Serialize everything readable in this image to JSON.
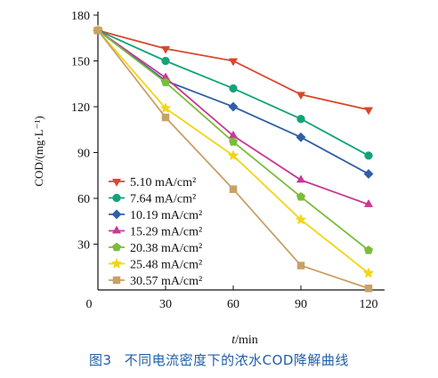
{
  "chart_data": {
    "type": "line",
    "x": [
      0,
      30,
      60,
      90,
      120
    ],
    "xticks": [
      "0",
      "30",
      "60",
      "90",
      "120"
    ],
    "yticks": [
      "30",
      "60",
      "90",
      "120",
      "150",
      "180"
    ],
    "xlim": [
      0,
      120
    ],
    "ylim": [
      0,
      180
    ],
    "xlabel_var": "t",
    "xlabel_unit": "/min",
    "ylabel": "COD/(mg·L⁻¹)",
    "legend_position": "bottom-left",
    "series": [
      {
        "name": "5.10 mA/cm²",
        "color": "#d9472b",
        "marker": "triangle-down",
        "values": [
          170,
          158,
          150,
          128,
          118
        ]
      },
      {
        "name": "7.64 mA/cm²",
        "color": "#12a37a",
        "marker": "circle",
        "values": [
          170,
          150,
          132,
          112,
          88
        ]
      },
      {
        "name": "10.19 mA/cm²",
        "color": "#2f5fa6",
        "marker": "diamond",
        "values": [
          170,
          137,
          120,
          100,
          76
        ]
      },
      {
        "name": "15.29 mA/cm²",
        "color": "#c63a95",
        "marker": "triangle-up",
        "values": [
          170,
          139,
          101,
          72,
          56
        ]
      },
      {
        "name": "20.38 mA/cm²",
        "color": "#7bbd3a",
        "marker": "pentagon",
        "values": [
          170,
          136,
          97,
          61,
          26
        ]
      },
      {
        "name": "25.48 mA/cm²",
        "color": "#f2d515",
        "marker": "star",
        "values": [
          170,
          119,
          88,
          46,
          11
        ]
      },
      {
        "name": "30.57 mA/cm²",
        "color": "#c9a066",
        "marker": "square",
        "values": [
          170,
          113,
          66,
          16,
          1
        ]
      }
    ]
  },
  "caption": {
    "figure_number": "图3",
    "text": "不同电流密度下的浓水COD降解曲线"
  }
}
